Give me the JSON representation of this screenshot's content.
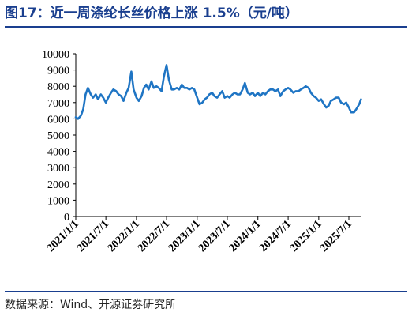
{
  "header": {
    "title": "图17：近一周涤纶长丝价格上涨 1.5%（元/吨）"
  },
  "footer": {
    "source_label": "数据来源：",
    "source_text": "Wind、开源证券研究所"
  },
  "colors": {
    "title": "#1a3f8f",
    "line": "#1f75c4",
    "axis": "#000000"
  },
  "chart_data": {
    "type": "line",
    "title": "",
    "xlabel": "",
    "ylabel": "",
    "ylim": [
      0,
      10000
    ],
    "yticks": [
      0,
      1000,
      2000,
      3000,
      4000,
      5000,
      6000,
      7000,
      8000,
      9000,
      10000
    ],
    "xlim": [
      "2021-01-01",
      "2025-09-15"
    ],
    "xticks": [
      "2021/1/1",
      "2021/7/1",
      "2022/1/1",
      "2022/7/1",
      "2023/1/1",
      "2023/7/1",
      "2024/1/1",
      "2024/7/1",
      "2025/1/1",
      "2025/7/1"
    ],
    "grid": false,
    "legend": "none",
    "series": [
      {
        "name": "",
        "x": [
          "2021-01-01",
          "2021-01-15",
          "2021-02-01",
          "2021-02-15",
          "2021-03-01",
          "2021-03-15",
          "2021-04-01",
          "2021-04-15",
          "2021-05-01",
          "2021-05-15",
          "2021-06-01",
          "2021-06-15",
          "2021-07-01",
          "2021-07-15",
          "2021-08-01",
          "2021-08-15",
          "2021-09-01",
          "2021-09-15",
          "2021-10-01",
          "2021-10-15",
          "2021-11-01",
          "2021-11-15",
          "2021-12-01",
          "2021-12-15",
          "2022-01-01",
          "2022-01-15",
          "2022-02-01",
          "2022-02-15",
          "2022-03-01",
          "2022-03-15",
          "2022-04-01",
          "2022-04-15",
          "2022-05-01",
          "2022-05-15",
          "2022-06-01",
          "2022-06-15",
          "2022-07-01",
          "2022-07-15",
          "2022-08-01",
          "2022-08-15",
          "2022-09-01",
          "2022-09-15",
          "2022-10-01",
          "2022-10-15",
          "2022-11-01",
          "2022-11-15",
          "2022-12-01",
          "2022-12-15",
          "2023-01-01",
          "2023-01-15",
          "2023-02-01",
          "2023-02-15",
          "2023-03-01",
          "2023-03-15",
          "2023-04-01",
          "2023-04-15",
          "2023-05-01",
          "2023-05-15",
          "2023-06-01",
          "2023-06-15",
          "2023-07-01",
          "2023-07-15",
          "2023-08-01",
          "2023-08-15",
          "2023-09-01",
          "2023-09-15",
          "2023-10-01",
          "2023-10-15",
          "2023-11-01",
          "2023-11-15",
          "2023-12-01",
          "2023-12-15",
          "2024-01-01",
          "2024-01-15",
          "2024-02-01",
          "2024-02-15",
          "2024-03-01",
          "2024-03-15",
          "2024-04-01",
          "2024-04-15",
          "2024-05-01",
          "2024-05-15",
          "2024-06-01",
          "2024-06-15",
          "2024-07-01",
          "2024-07-15",
          "2024-08-01",
          "2024-08-15",
          "2024-09-01",
          "2024-09-15",
          "2024-10-01",
          "2024-10-15",
          "2024-11-01",
          "2024-11-15",
          "2024-12-01",
          "2024-12-15",
          "2025-01-01",
          "2025-01-15",
          "2025-02-01",
          "2025-02-15",
          "2025-03-01",
          "2025-03-15",
          "2025-04-01",
          "2025-04-15",
          "2025-05-01",
          "2025-05-15",
          "2025-06-01",
          "2025-06-15",
          "2025-07-01",
          "2025-07-15",
          "2025-08-01",
          "2025-08-15",
          "2025-09-01",
          "2025-09-12"
        ],
        "values": [
          6100,
          6000,
          6200,
          6600,
          7500,
          7900,
          7500,
          7300,
          7500,
          7200,
          7500,
          7300,
          7000,
          7300,
          7600,
          7800,
          7700,
          7500,
          7400,
          7100,
          7600,
          7900,
          8900,
          7800,
          7300,
          7100,
          7400,
          7900,
          8100,
          7800,
          8300,
          7900,
          8000,
          7900,
          7700,
          8600,
          9300,
          8400,
          7800,
          7800,
          7900,
          7800,
          8100,
          7900,
          7900,
          7800,
          7900,
          7800,
          7300,
          6900,
          7000,
          7200,
          7300,
          7500,
          7600,
          7400,
          7300,
          7500,
          7700,
          7300,
          7400,
          7300,
          7500,
          7600,
          7500,
          7500,
          7800,
          8200,
          7600,
          7500,
          7600,
          7400,
          7600,
          7400,
          7600,
          7500,
          7700,
          7800,
          7800,
          7700,
          7800,
          7400,
          7700,
          7800,
          7900,
          7800,
          7600,
          7700,
          7700,
          7800,
          7900,
          8000,
          7900,
          7600,
          7400,
          7300,
          7100,
          7200,
          6900,
          6700,
          6800,
          7100,
          7200,
          7300,
          7300,
          7000,
          6900,
          7000,
          6700,
          6400,
          6400,
          6600,
          6900,
          7200
        ]
      }
    ]
  }
}
